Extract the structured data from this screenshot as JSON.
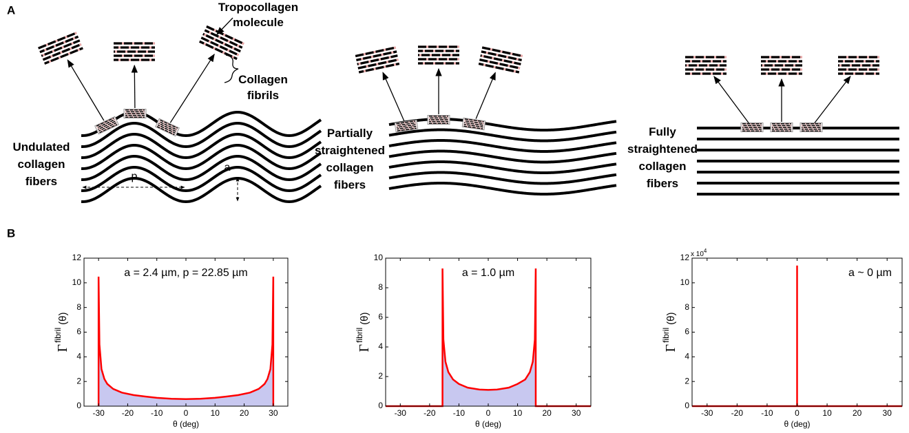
{
  "panel_labels": [
    "A",
    "B"
  ],
  "diagram": {
    "tropocollagen_label": [
      "Tropocollagen",
      "molecule"
    ],
    "fibrils_label": [
      "Collagen",
      "fibrils"
    ],
    "undulated_label": [
      "Undulated",
      "collagen",
      "fibers"
    ],
    "partial_label": [
      "Partially",
      "straightened",
      "collagen",
      "fibers"
    ],
    "full_label": [
      "Fully",
      "straightened",
      "collagen",
      "fibers"
    ],
    "period_label": "p",
    "amplitude_label": "a"
  },
  "chart_data": [
    {
      "type": "line",
      "annotation": "a = 2.4 µm,  p = 22.85 µm",
      "xlabel": "θ (deg)",
      "ylabel": "Γ",
      "ylabel_superscript": "fibril",
      "ylabel_suffix": "(θ)",
      "x": [
        -30,
        -30,
        -29.7,
        -29,
        -28,
        -27,
        -25,
        -22,
        -18,
        -14,
        -10,
        -5,
        0,
        5,
        10,
        14,
        18,
        22,
        25,
        27,
        28,
        29,
        29.7,
        30,
        30
      ],
      "values": [
        0,
        10.5,
        5,
        3,
        2.2,
        1.8,
        1.4,
        1.1,
        0.9,
        0.78,
        0.68,
        0.6,
        0.57,
        0.6,
        0.68,
        0.78,
        0.9,
        1.1,
        1.4,
        1.8,
        2.2,
        3,
        5,
        10.5,
        0
      ],
      "color": "#ff0000",
      "area_color": "#c8c8f0",
      "xlim": [
        -35,
        35
      ],
      "xticks": [
        -30,
        -20,
        -10,
        0,
        10,
        20,
        30
      ],
      "ylim": [
        0,
        12
      ],
      "yticks": [
        0,
        2,
        4,
        6,
        8,
        10,
        12
      ]
    },
    {
      "type": "line",
      "annotation": "a = 1.0 µm",
      "xlabel": "θ (deg)",
      "ylabel": "Γ",
      "ylabel_superscript": "fibril",
      "ylabel_suffix": "(θ)",
      "x": [
        -35,
        -15.6,
        -15.6,
        -15.3,
        -14.6,
        -13.6,
        -12,
        -10,
        -7,
        -3,
        0,
        3,
        7,
        10,
        12.6,
        14.2,
        15.2,
        15.9,
        16.2,
        16.2,
        35
      ],
      "values": [
        0,
        0,
        9.3,
        4.5,
        3,
        2.3,
        1.8,
        1.5,
        1.25,
        1.12,
        1.1,
        1.12,
        1.25,
        1.5,
        1.8,
        2.3,
        3,
        4.5,
        9.3,
        0,
        0
      ],
      "color": "#ff0000",
      "area_color": "#c8c8f0",
      "xlim": [
        -35,
        35
      ],
      "xticks": [
        -30,
        -20,
        -10,
        0,
        10,
        20,
        30
      ],
      "ylim": [
        0,
        10
      ],
      "yticks": [
        0,
        2,
        4,
        6,
        8,
        10
      ]
    },
    {
      "type": "line",
      "annotation": "a ~ 0 µm",
      "xlabel": "θ (deg)",
      "ylabel": "Γ",
      "ylabel_superscript": "fibril",
      "ylabel_suffix": "(θ)",
      "y_multiplier": "x 10",
      "y_multiplier_exponent": "4",
      "x": [
        -35,
        0,
        0,
        0,
        35
      ],
      "values": [
        0,
        0,
        114000,
        0,
        0
      ],
      "color": "#ff0000",
      "xlim": [
        -35,
        35
      ],
      "xticks": [
        -30,
        -20,
        -10,
        0,
        10,
        20,
        30
      ],
      "ylim": [
        0,
        120000
      ],
      "yticks": [
        0,
        {
          "value": 20000,
          "label": "2"
        },
        {
          "value": 40000,
          "label": "4"
        },
        {
          "value": 60000,
          "label": "6"
        },
        {
          "value": 80000,
          "label": "8"
        },
        {
          "value": 100000,
          "label": "10"
        },
        {
          "value": 120000,
          "label": "12"
        }
      ]
    }
  ]
}
